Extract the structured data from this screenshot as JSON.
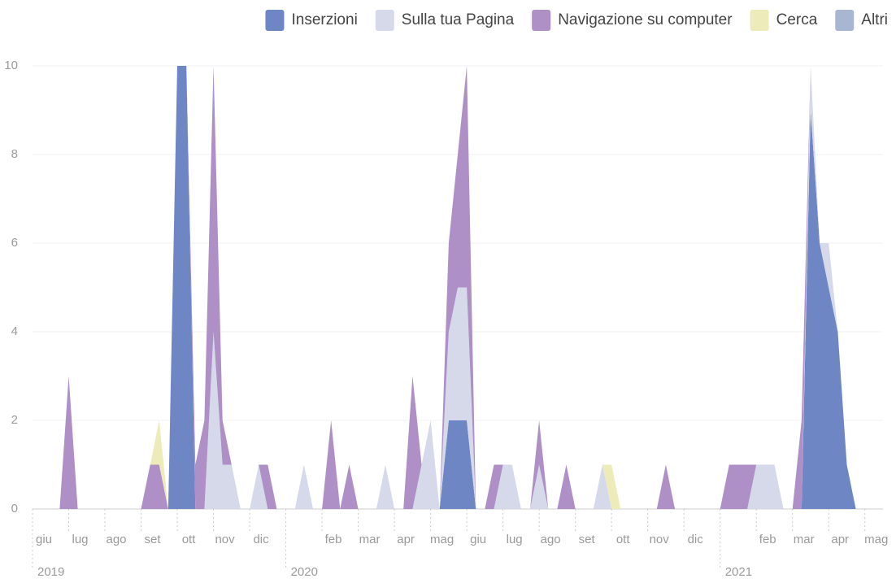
{
  "chart_data": {
    "type": "stacked_area",
    "x": [
      0,
      0.25,
      0.5,
      0.75,
      1,
      1.25,
      1.5,
      1.75,
      2,
      2.25,
      2.5,
      2.75,
      3,
      3.25,
      3.5,
      3.75,
      4,
      4.25,
      4.5,
      4.75,
      5,
      5.25,
      5.5,
      5.75,
      6,
      6.25,
      6.5,
      6.75,
      7,
      7.25,
      7.5,
      7.75,
      8,
      8.25,
      8.5,
      8.75,
      9,
      9.25,
      9.5,
      9.75,
      10,
      10.25,
      10.5,
      10.75,
      11,
      11.25,
      11.5,
      11.75,
      12,
      12.25,
      12.5,
      12.75,
      13,
      13.25,
      13.5,
      13.75,
      14,
      14.25,
      14.5,
      14.75,
      15,
      15.25,
      15.5,
      15.75,
      16,
      16.25,
      16.5,
      16.75,
      17,
      17.25,
      17.5,
      17.75,
      18,
      18.25,
      18.5,
      18.75,
      19,
      19.25,
      19.5,
      19.75,
      20,
      20.25,
      20.5,
      20.75,
      21,
      21.25,
      21.5,
      21.75,
      22,
      22.25,
      22.5,
      22.75,
      23,
      23.25
    ],
    "series": [
      {
        "name": "Inserzioni",
        "color": "#6f86c4",
        "values": [
          0,
          0,
          0,
          0,
          0,
          0,
          0,
          0,
          0,
          0,
          0,
          0,
          0,
          0,
          0,
          0,
          10,
          10,
          0,
          0,
          0,
          0,
          0,
          0,
          0,
          0,
          0,
          0,
          0,
          0,
          0,
          0,
          0,
          0,
          0,
          0,
          0,
          0,
          0,
          0,
          0,
          0,
          0,
          0,
          0,
          0,
          2,
          2,
          2,
          0,
          0,
          0,
          0,
          0,
          0,
          0,
          0,
          0,
          0,
          0,
          0,
          0,
          0,
          0,
          0,
          0,
          0,
          0,
          0,
          0,
          0,
          0,
          0,
          0,
          0,
          0,
          0,
          0,
          0,
          0,
          0,
          0,
          0,
          0,
          0,
          0,
          9,
          6,
          5,
          4,
          1,
          0,
          0,
          0
        ]
      },
      {
        "name": "Sulla tua Pagina",
        "color": "#d5d9ea",
        "values": [
          0,
          0,
          0,
          0,
          0,
          0,
          0,
          0,
          0,
          0,
          0,
          0,
          0,
          0,
          0,
          0,
          0,
          0,
          0,
          0,
          4,
          1,
          1,
          0,
          0,
          1,
          0,
          0,
          0,
          0,
          1,
          0,
          0,
          0,
          0,
          0,
          0,
          0,
          0,
          1,
          0,
          0,
          0,
          1,
          2,
          0,
          2,
          3,
          3,
          0,
          0,
          0,
          1,
          1,
          0,
          0,
          1,
          0,
          0,
          0,
          0,
          0,
          0,
          1,
          0,
          0,
          0,
          0,
          0,
          0,
          0,
          0,
          0,
          0,
          0,
          0,
          0,
          0,
          0,
          0,
          1,
          1,
          1,
          0,
          0,
          0,
          1,
          0,
          1,
          0,
          0,
          0,
          0,
          0
        ]
      },
      {
        "name": "Navigazione su computer",
        "color": "#ae8fc6",
        "values": [
          0,
          0,
          0,
          0,
          3,
          0,
          0,
          0,
          0,
          0,
          0,
          0,
          0,
          1,
          1,
          0,
          0,
          0,
          1,
          2,
          6,
          1,
          0,
          0,
          0,
          0,
          1,
          0,
          0,
          0,
          0,
          0,
          0,
          2,
          0,
          1,
          0,
          0,
          0,
          0,
          0,
          0,
          3,
          0,
          0,
          0,
          2,
          3,
          5,
          0,
          0,
          1,
          0,
          0,
          0,
          0,
          1,
          0,
          0,
          1,
          0,
          0,
          0,
          0,
          0,
          0,
          0,
          0,
          0,
          0,
          1,
          0,
          0,
          0,
          0,
          0,
          0,
          1,
          1,
          1,
          0,
          0,
          0,
          0,
          0,
          2,
          0,
          0,
          0,
          0,
          0,
          0,
          0,
          0
        ]
      },
      {
        "name": "Cerca",
        "color": "#ecebb9",
        "values": [
          0,
          0,
          0,
          0,
          0,
          0,
          0,
          0,
          0,
          0,
          0,
          0,
          0,
          0,
          1,
          0,
          0,
          0,
          0,
          0,
          0,
          0,
          0,
          0,
          0,
          0,
          0,
          0,
          0,
          0,
          0,
          0,
          0,
          0,
          0,
          0,
          0,
          0,
          0,
          0,
          0,
          0,
          0,
          0,
          0,
          0,
          0,
          0,
          0,
          0,
          0,
          0,
          0,
          0,
          0,
          0,
          0,
          0,
          0,
          0,
          0,
          0,
          0,
          0,
          1,
          0,
          0,
          0,
          0,
          0,
          0,
          0,
          0,
          0,
          0,
          0,
          0,
          0,
          0,
          0,
          0,
          0,
          0,
          0,
          0,
          0,
          0,
          0,
          0,
          0,
          0,
          0,
          0,
          0
        ]
      },
      {
        "name": "Altri",
        "color": "#a9b6d2",
        "values": [
          0,
          0,
          0,
          0,
          0,
          0,
          0,
          0,
          0,
          0,
          0,
          0,
          0,
          0,
          0,
          0,
          0,
          0,
          0,
          0,
          0,
          0,
          0,
          0,
          0,
          0,
          0,
          0,
          0,
          0,
          0,
          0,
          0,
          0,
          0,
          0,
          0,
          0,
          0,
          0,
          0,
          0,
          0,
          0,
          0,
          0,
          0,
          0,
          0,
          0,
          0,
          0,
          0,
          0,
          0,
          0,
          0,
          0,
          0,
          0,
          0,
          0,
          0,
          0,
          0,
          0,
          0,
          0,
          0,
          0,
          0,
          0,
          0,
          0,
          0,
          0,
          0,
          0,
          0,
          0,
          0,
          0,
          0,
          0,
          0,
          0,
          0,
          0,
          0,
          0,
          0,
          0,
          0,
          0
        ]
      }
    ],
    "xlim": [
      0,
      23.5
    ],
    "xticks": [
      {
        "value": 0,
        "label": "giu"
      },
      {
        "value": 1,
        "label": "lug"
      },
      {
        "value": 2,
        "label": "ago"
      },
      {
        "value": 3,
        "label": "set"
      },
      {
        "value": 4,
        "label": "ott"
      },
      {
        "value": 5,
        "label": "nov"
      },
      {
        "value": 6,
        "label": "dic"
      },
      {
        "value": 8,
        "label": "feb"
      },
      {
        "value": 9,
        "label": "mar"
      },
      {
        "value": 10,
        "label": "apr"
      },
      {
        "value": 11,
        "label": "mag"
      },
      {
        "value": 12,
        "label": "giu"
      },
      {
        "value": 13,
        "label": "lug"
      },
      {
        "value": 14,
        "label": "ago"
      },
      {
        "value": 15,
        "label": "set"
      },
      {
        "value": 16,
        "label": "ott"
      },
      {
        "value": 17,
        "label": "nov"
      },
      {
        "value": 18,
        "label": "dic"
      },
      {
        "value": 20,
        "label": "feb"
      },
      {
        "value": 21,
        "label": "mar"
      },
      {
        "value": 22,
        "label": "apr"
      },
      {
        "value": 23,
        "label": "mag"
      }
    ],
    "year_ticks": [
      {
        "value": 0,
        "label": "2019"
      },
      {
        "value": 7,
        "label": "2020"
      },
      {
        "value": 19,
        "label": "2021"
      }
    ],
    "ylim": [
      0,
      10
    ],
    "yticks": [
      0,
      2,
      4,
      6,
      8,
      10
    ],
    "grid": true,
    "legend": "top-right"
  }
}
